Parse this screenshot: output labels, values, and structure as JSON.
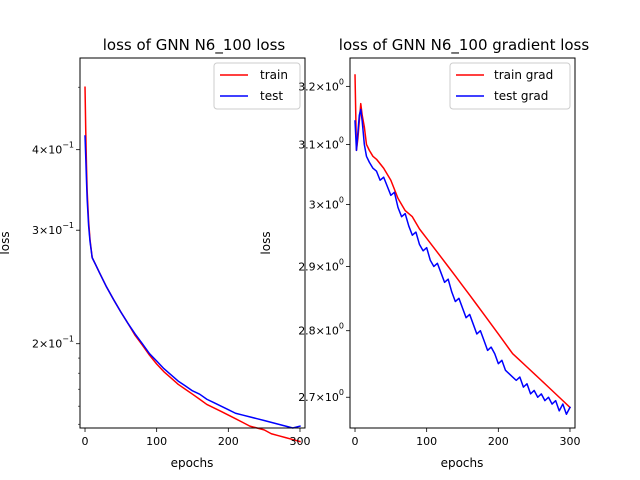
{
  "chart_data": [
    {
      "type": "line",
      "title": "loss of GNN N6_100 loss",
      "xlabel": "epochs",
      "ylabel": "loss",
      "xlim": [
        -7,
        307
      ],
      "ylim": [
        0.148,
        0.555
      ],
      "yscale": "log",
      "xticks": [
        {
          "value": 0,
          "label": "0"
        },
        {
          "value": 100,
          "label": "100"
        },
        {
          "value": 200,
          "label": "200"
        },
        {
          "value": 300,
          "label": "300"
        }
      ],
      "yticks": [
        {
          "value": 0.2,
          "base": "2×10",
          "exp": "−1"
        },
        {
          "value": 0.3,
          "base": "3×10",
          "exp": "−1"
        },
        {
          "value": 0.4,
          "base": "4×10",
          "exp": "−1"
        }
      ],
      "grid": false,
      "legend_position": "top-right",
      "series": [
        {
          "name": "train",
          "color": "#ff0000",
          "x": [
            0,
            1,
            2,
            3,
            5,
            7,
            10,
            15,
            20,
            30,
            40,
            50,
            60,
            70,
            80,
            90,
            100,
            110,
            120,
            130,
            140,
            150,
            160,
            170,
            180,
            190,
            200,
            210,
            220,
            230,
            240,
            250,
            260,
            270,
            280,
            290,
            300
          ],
          "y": [
            0.5,
            0.43,
            0.38,
            0.345,
            0.31,
            0.29,
            0.272,
            0.265,
            0.258,
            0.245,
            0.234,
            0.224,
            0.215,
            0.206,
            0.199,
            0.192,
            0.186,
            0.181,
            0.177,
            0.173,
            0.17,
            0.167,
            0.164,
            0.161,
            0.159,
            0.157,
            0.155,
            0.153,
            0.151,
            0.149,
            0.148,
            0.147,
            0.145,
            0.144,
            0.143,
            0.142,
            0.141
          ]
        },
        {
          "name": "test",
          "color": "#0000ff",
          "x": [
            0,
            1,
            2,
            3,
            5,
            7,
            10,
            15,
            20,
            30,
            40,
            50,
            60,
            70,
            80,
            90,
            100,
            110,
            120,
            130,
            140,
            150,
            160,
            170,
            180,
            190,
            200,
            210,
            220,
            230,
            240,
            250,
            260,
            270,
            280,
            290,
            300
          ],
          "y": [
            0.42,
            0.39,
            0.36,
            0.335,
            0.305,
            0.288,
            0.272,
            0.265,
            0.258,
            0.245,
            0.234,
            0.224,
            0.215,
            0.207,
            0.2,
            0.193,
            0.188,
            0.183,
            0.179,
            0.175,
            0.172,
            0.169,
            0.167,
            0.164,
            0.162,
            0.16,
            0.158,
            0.156,
            0.155,
            0.154,
            0.153,
            0.152,
            0.151,
            0.15,
            0.149,
            0.148,
            0.149
          ]
        }
      ]
    },
    {
      "type": "line",
      "title": "loss of GNN N6_100 gradient loss",
      "xlabel": "epochs",
      "ylabel": "loss",
      "xlim": [
        -7,
        307
      ],
      "ylim": [
        2.655,
        3.25
      ],
      "yscale": "log",
      "xticks": [
        {
          "value": 0,
          "label": "0"
        },
        {
          "value": 100,
          "label": "100"
        },
        {
          "value": 200,
          "label": "200"
        },
        {
          "value": 300,
          "label": "300"
        }
      ],
      "yticks": [
        {
          "value": 2.7,
          "base": "2.7×10",
          "exp": "0"
        },
        {
          "value": 2.8,
          "base": "2.8×10",
          "exp": "0"
        },
        {
          "value": 2.9,
          "base": "2.9×10",
          "exp": "0"
        },
        {
          "value": 3.0,
          "base": "3×10",
          "exp": "0"
        },
        {
          "value": 3.1,
          "base": "3.1×10",
          "exp": "0"
        },
        {
          "value": 3.2,
          "base": "3.2×10",
          "exp": "0"
        }
      ],
      "grid": false,
      "legend_position": "top-right",
      "series": [
        {
          "name": "train grad",
          "color": "#ff0000",
          "x": [
            0,
            2,
            4,
            6,
            8,
            10,
            13,
            16,
            20,
            25,
            30,
            40,
            50,
            60,
            70,
            80,
            90,
            100,
            110,
            120,
            130,
            140,
            150,
            160,
            170,
            180,
            190,
            200,
            210,
            220,
            230,
            240,
            250,
            260,
            270,
            280,
            290,
            300
          ],
          "y": [
            3.22,
            3.09,
            3.11,
            3.14,
            3.17,
            3.15,
            3.13,
            3.1,
            3.09,
            3.08,
            3.075,
            3.06,
            3.04,
            3.01,
            2.99,
            2.98,
            2.96,
            2.945,
            2.93,
            2.915,
            2.9,
            2.885,
            2.87,
            2.855,
            2.84,
            2.825,
            2.81,
            2.795,
            2.78,
            2.765,
            2.755,
            2.745,
            2.735,
            2.725,
            2.715,
            2.705,
            2.695,
            2.685
          ]
        },
        {
          "name": "test grad",
          "color": "#0000ff",
          "x": [
            0,
            2,
            4,
            6,
            8,
            10,
            13,
            16,
            20,
            25,
            30,
            35,
            40,
            45,
            50,
            55,
            60,
            65,
            70,
            75,
            80,
            85,
            90,
            95,
            100,
            105,
            110,
            115,
            120,
            125,
            130,
            135,
            140,
            145,
            150,
            155,
            160,
            165,
            170,
            175,
            180,
            185,
            190,
            195,
            200,
            205,
            210,
            215,
            220,
            225,
            230,
            235,
            240,
            245,
            250,
            255,
            260,
            265,
            270,
            275,
            280,
            285,
            290,
            295,
            300
          ],
          "y": [
            3.14,
            3.09,
            3.12,
            3.15,
            3.16,
            3.14,
            3.1,
            3.08,
            3.07,
            3.06,
            3.055,
            3.04,
            3.045,
            3.03,
            3.015,
            3.02,
            2.995,
            2.98,
            2.985,
            2.965,
            2.95,
            2.955,
            2.935,
            2.925,
            2.93,
            2.91,
            2.9,
            2.905,
            2.89,
            2.875,
            2.88,
            2.86,
            2.845,
            2.85,
            2.835,
            2.82,
            2.825,
            2.81,
            2.795,
            2.8,
            2.785,
            2.77,
            2.775,
            2.765,
            2.75,
            2.755,
            2.74,
            2.735,
            2.73,
            2.725,
            2.73,
            2.715,
            2.72,
            2.705,
            2.71,
            2.7,
            2.705,
            2.695,
            2.7,
            2.69,
            2.695,
            2.68,
            2.69,
            2.675,
            2.685
          ]
        }
      ]
    }
  ]
}
